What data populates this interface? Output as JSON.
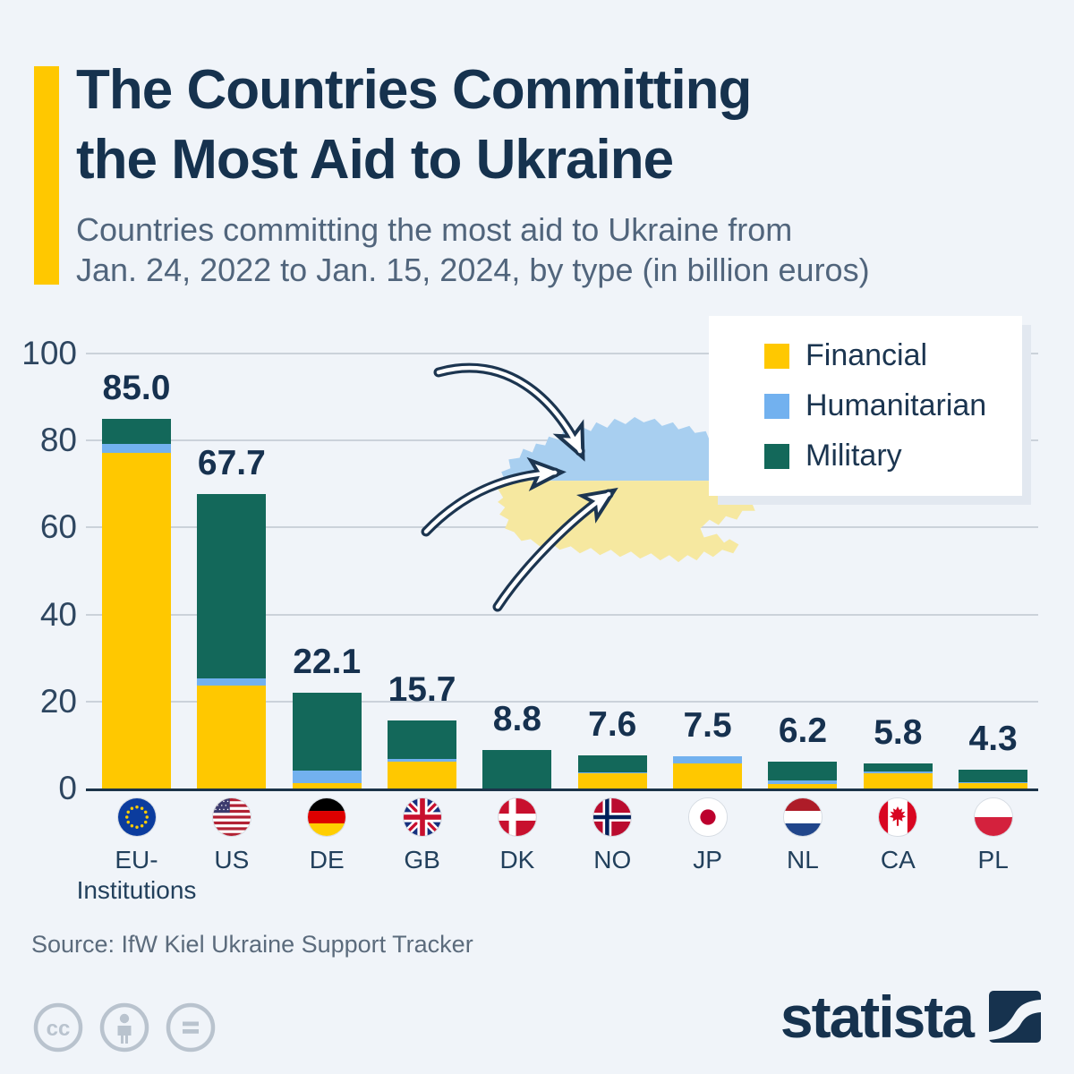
{
  "header": {
    "title": "The Countries Committing the Most Aid to Ukraine",
    "title_lines": [
      "The Countries Committing",
      "the Most Aid to Ukraine"
    ],
    "subtitle_lines": [
      "Countries committing the most aid to Ukraine from",
      "Jan. 24, 2022 to Jan. 15, 2024, by type (in billion euros)"
    ],
    "accent_color": "#FFC800"
  },
  "chart_data": {
    "type": "bar",
    "stacked": true,
    "title": "Countries committing the most aid to Ukraine from Jan. 24, 2022 to Jan. 15, 2024, by type (in billion euros)",
    "unit": "billion euros",
    "categories": [
      "EU-Institutions",
      "US",
      "DE",
      "GB",
      "DK",
      "NO",
      "JP",
      "NL",
      "CA",
      "PL"
    ],
    "category_label_lines": [
      [
        "EU-",
        "Institutions"
      ],
      [
        "US"
      ],
      [
        "DE"
      ],
      [
        "GB"
      ],
      [
        "DK"
      ],
      [
        "NO"
      ],
      [
        "JP"
      ],
      [
        "NL"
      ],
      [
        "CA"
      ],
      [
        "PL"
      ]
    ],
    "totals": [
      85.0,
      67.7,
      22.1,
      15.7,
      8.8,
      7.6,
      7.5,
      6.2,
      5.8,
      4.3
    ],
    "series": [
      {
        "name": "Financial",
        "color": "#FFC800",
        "values": [
          77.1,
          23.6,
          1.3,
          6.1,
          0.0,
          3.4,
          5.7,
          1.1,
          3.6,
          1.2
        ]
      },
      {
        "name": "Humanitarian",
        "color": "#72B1EF",
        "values": [
          2.2,
          1.7,
          2.9,
          0.6,
          0.0,
          0.4,
          1.8,
          0.7,
          0.4,
          0.3
        ]
      },
      {
        "name": "Military",
        "color": "#13685A",
        "values": [
          5.7,
          42.4,
          17.9,
          9.0,
          8.8,
          3.8,
          0.0,
          4.4,
          1.8,
          2.8
        ]
      }
    ],
    "ylim": [
      0,
      100
    ],
    "yticks": [
      0,
      20,
      40,
      60,
      80,
      100
    ],
    "grid": true,
    "legend_position": "top-right",
    "flag_icons": [
      "eu-flag-icon",
      "us-flag-icon",
      "de-flag-icon",
      "gb-flag-icon",
      "dk-flag-icon",
      "no-flag-icon",
      "jp-flag-icon",
      "nl-flag-icon",
      "ca-flag-icon",
      "pl-flag-icon"
    ]
  },
  "footer": {
    "source": "Source: IfW Kiel Ukraine Support Tracker",
    "license_icons": [
      "cc-icon",
      "attribution-icon",
      "equal-icon"
    ],
    "brand": "statista"
  },
  "colors": {
    "background": "#F0F4F9",
    "title": "#16324E",
    "subtitle": "#51657C",
    "grid": "#CBD2DA",
    "axis": "#1B3349",
    "map_blue": "#A8CFF0",
    "map_yellow": "#F6E8A0",
    "arrow_navy": "#1C3550"
  }
}
